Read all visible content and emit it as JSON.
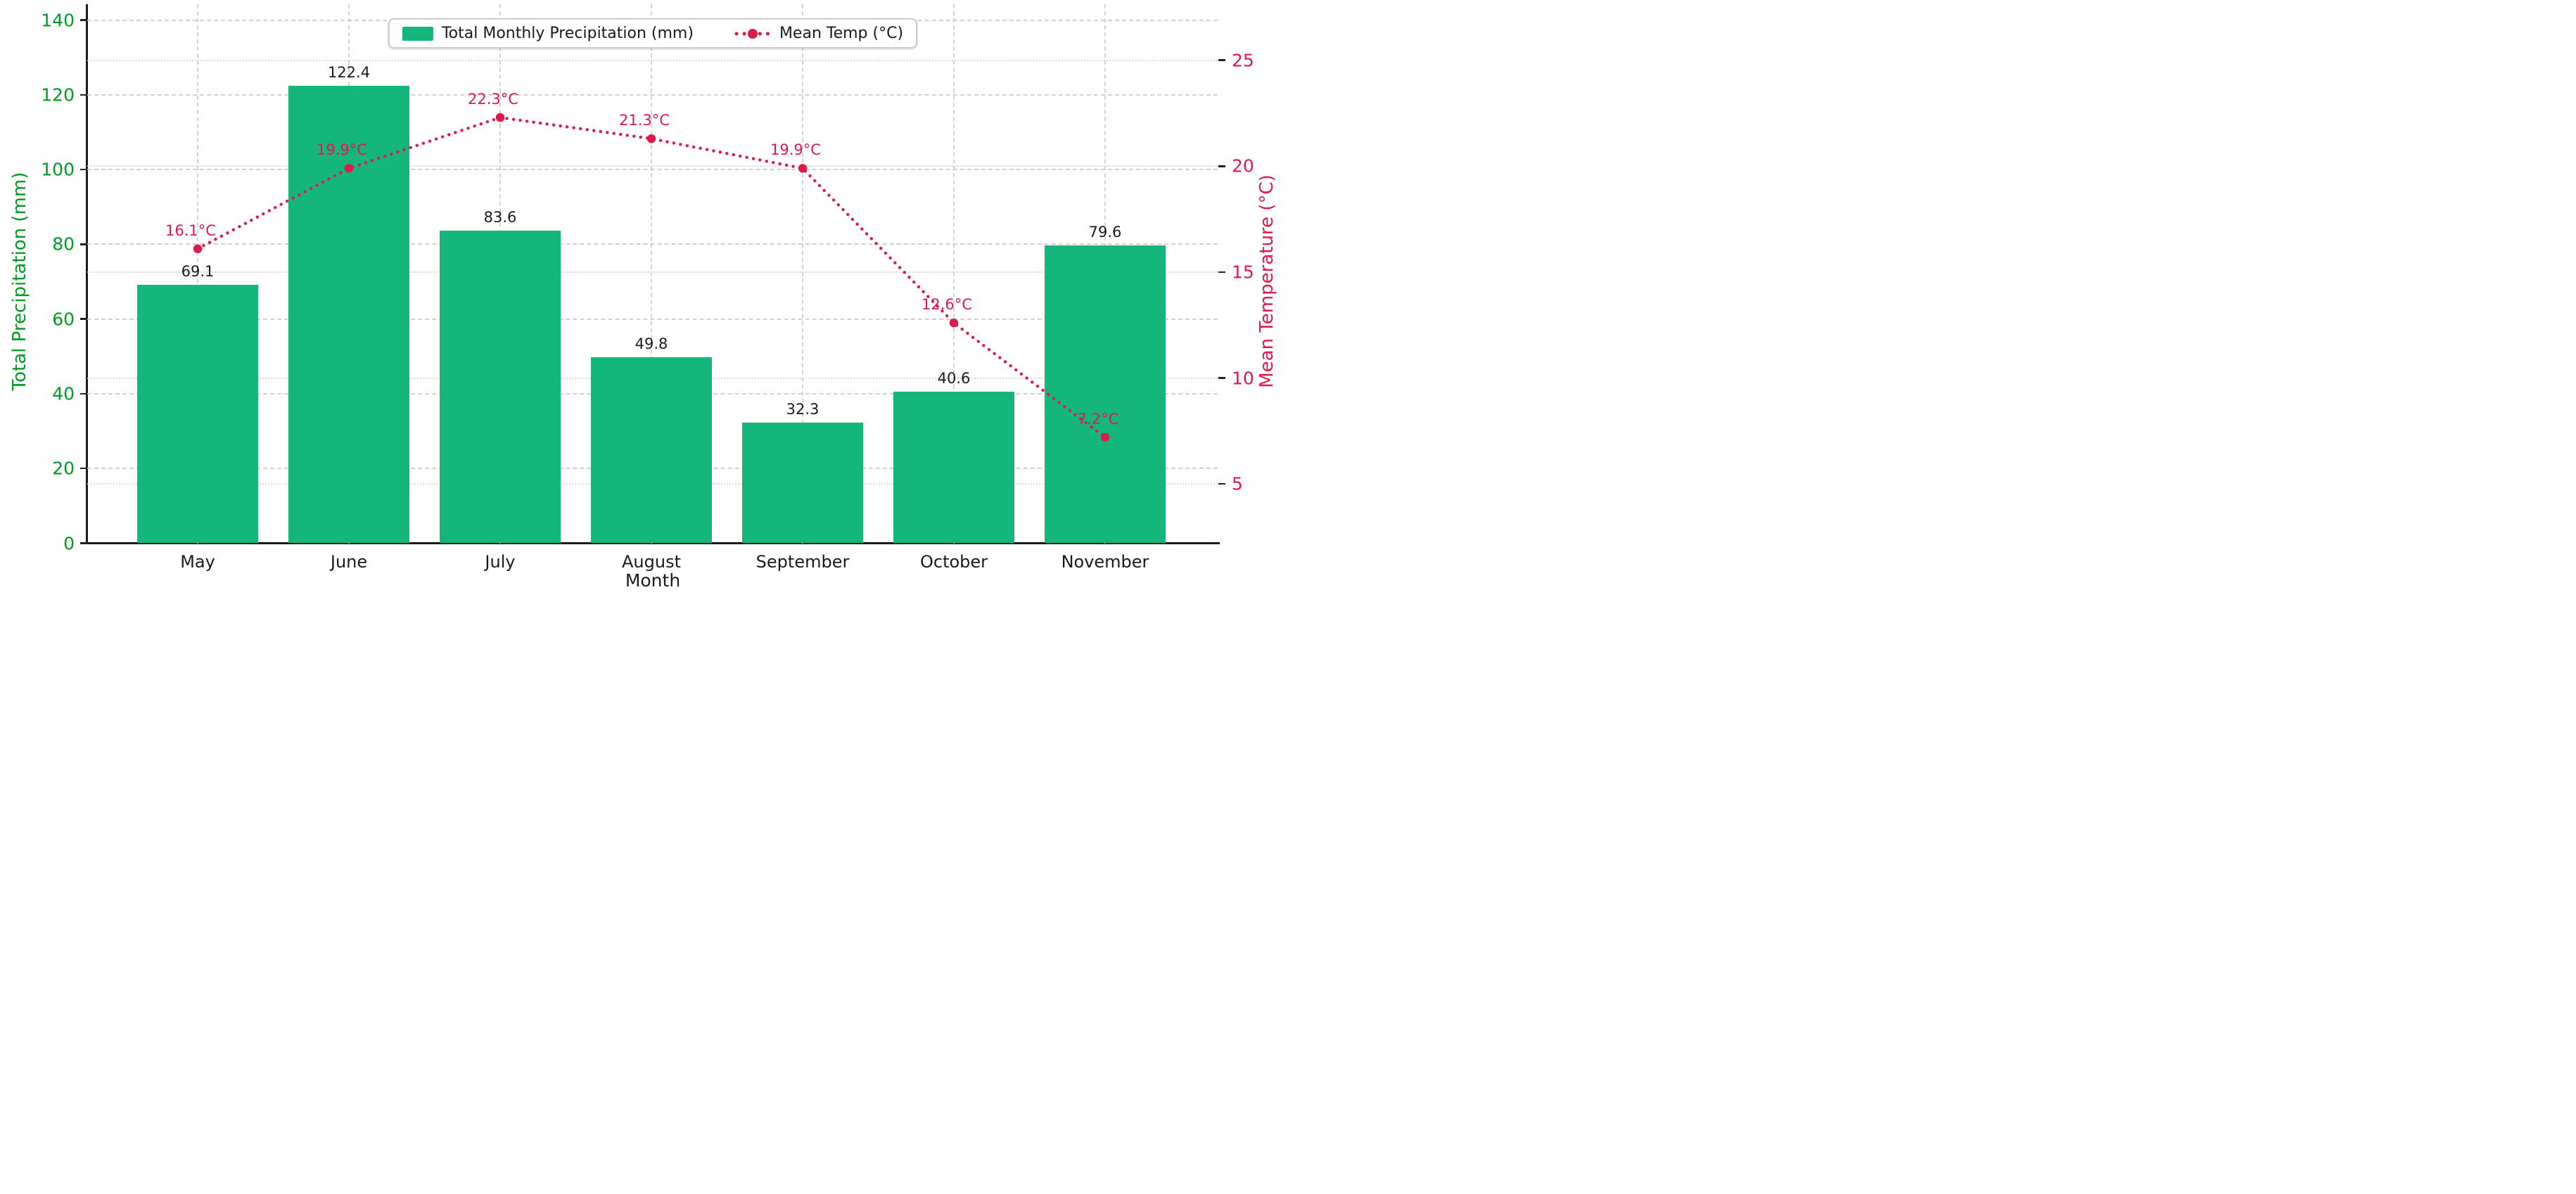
{
  "figure": {
    "background": "#ffffff"
  },
  "colors": {
    "bar_green": "#14b67c",
    "left_axis_green": "#009a23",
    "temp_crimson": "#de1a4a",
    "grid_dashed": "#c8c8c8",
    "grid_dotted": "#d7d7d7",
    "text_dark": "#1a1a1a"
  },
  "legend": {
    "precip_label": "Total Monthly Precipitation (mm)",
    "temp_label": "Mean Temp (°C)"
  },
  "chart_data": {
    "type": "bar",
    "subtype": "dual-axis bar + dotted line combo",
    "categories": [
      "May",
      "June",
      "July",
      "August",
      "September",
      "October",
      "November"
    ],
    "series": [
      {
        "name": "Total Monthly Precipitation (mm)",
        "type": "bar",
        "axis": "left",
        "values": [
          69.1,
          122.4,
          83.6,
          49.8,
          32.3,
          40.6,
          79.6
        ],
        "point_labels": [
          "69.1",
          "122.4",
          "83.6",
          "49.8",
          "32.3",
          "40.6",
          "79.6"
        ],
        "color": "#14b67c"
      },
      {
        "name": "Mean Temp (°C)",
        "type": "line",
        "line_style": "dotted",
        "marker": "circle",
        "axis": "right",
        "values": [
          16.1,
          19.9,
          22.3,
          21.3,
          19.9,
          12.6,
          7.2
        ],
        "point_labels": [
          "16.1°C",
          "19.9°C",
          "22.3°C",
          "21.3°C",
          "19.9°C",
          "12.6°C",
          "7.2°C"
        ],
        "color": "#de1a4a"
      }
    ],
    "title": "",
    "xlabel": "Month",
    "left_axis": {
      "label": "Total Precipitation (mm)",
      "ticks": [
        0,
        20,
        40,
        60,
        80,
        100,
        120,
        140
      ],
      "tick_labels": [
        "0",
        "20",
        "40",
        "60",
        "80",
        "100",
        "120",
        "140"
      ],
      "range": [
        0,
        140
      ],
      "color": "#009a23"
    },
    "right_axis": {
      "label": "Mean Temperature (°C)",
      "ticks": [
        5,
        10,
        15,
        20,
        25
      ],
      "tick_labels": [
        "5",
        "10",
        "15",
        "20",
        "25"
      ],
      "range": [
        2.2,
        27.0
      ],
      "color": "#de1a4a"
    },
    "grid": {
      "horizontal_major": "dashed",
      "horizontal_secondary": "dotted",
      "vertical": "dashed at category centers"
    },
    "legend_position": "top-center inside plot"
  }
}
